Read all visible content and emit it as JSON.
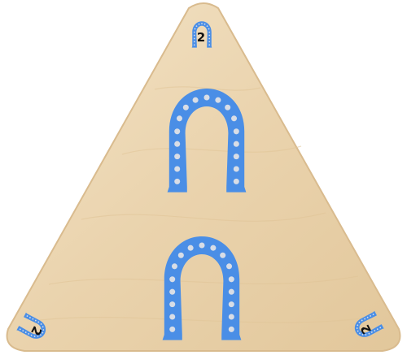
{
  "tile": {
    "corner_numbers": {
      "top": "2",
      "bottom_left": "2",
      "bottom_right": "2"
    },
    "horseshoe_count_center": 2
  },
  "colors": {
    "wood_light": "#efdcbc",
    "wood_mid": "#e6cca2",
    "wood_edge": "#d9bb8e",
    "horseshoe_blue": "#4a8ee6",
    "horseshoe_dark": "#3a78cc",
    "nail_hole": "#d8dde6",
    "number_ink": "#111111"
  },
  "icons": [
    "horseshoe-icon",
    "horseshoe-icon",
    "horseshoe-icon",
    "horseshoe-icon",
    "horseshoe-icon"
  ]
}
